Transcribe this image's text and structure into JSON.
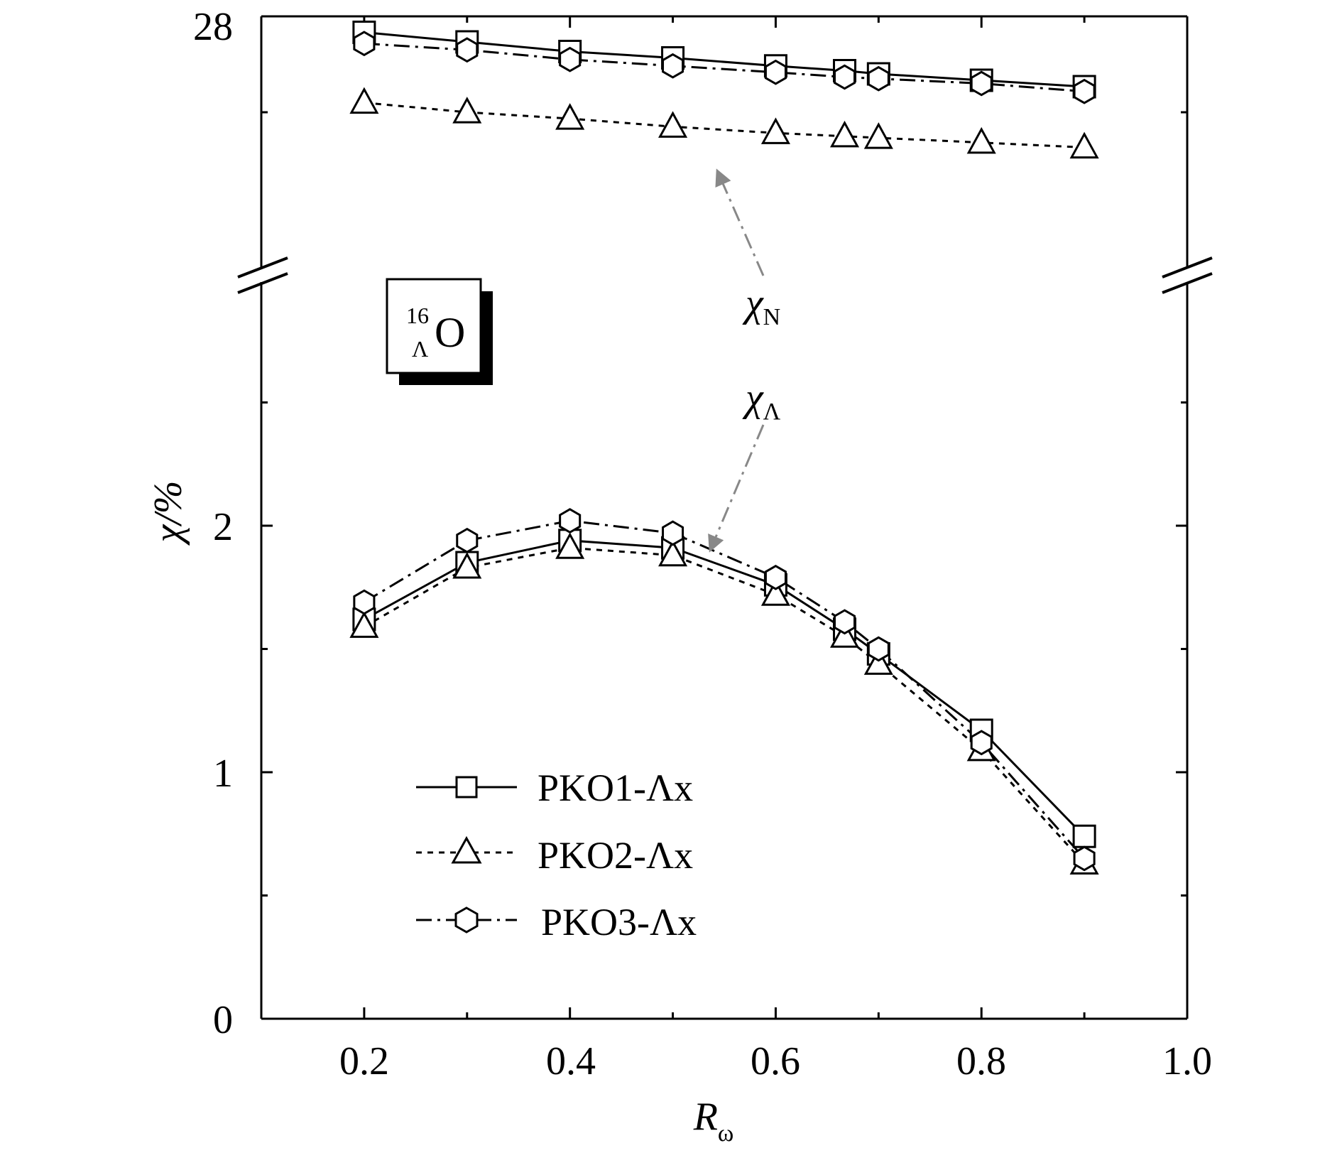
{
  "chart_data": {
    "type": "line",
    "title": "",
    "xlabel": "R",
    "xlabel_sub": "ω",
    "ylabel": "χ/%",
    "xlim": [
      0.1,
      1.0
    ],
    "x_ticks": [
      0.2,
      0.4,
      0.6,
      0.8,
      1.0
    ],
    "x_tick_labels": [
      "0.2",
      "0.4",
      "0.6",
      "0.8",
      "1.0"
    ],
    "y_tick_labels": [
      "0",
      "1",
      "2",
      "28"
    ],
    "y_axis_break": true,
    "lower_ylim": [
      0,
      2.5
    ],
    "upper_ylim": [
      25.9,
      28
    ],
    "nucleus_label": {
      "mass": "16",
      "sub": "Λ",
      "element": "O"
    },
    "annotations": [
      {
        "symbol": "χ",
        "sub": "N"
      },
      {
        "symbol": "χ",
        "sub": "Λ"
      }
    ],
    "legend_position": "lower-left",
    "x": [
      0.2,
      0.3,
      0.4,
      0.5,
      0.6,
      0.667,
      0.7,
      0.8,
      0.9
    ],
    "series": [
      {
        "name": "PKO1-Λx",
        "marker": "square",
        "line": "solid",
        "chi_N": [
          27.9,
          27.84,
          27.78,
          27.74,
          27.69,
          27.66,
          27.64,
          27.6,
          27.56
        ],
        "chi_Lambda": [
          1.62,
          1.85,
          1.94,
          1.91,
          1.76,
          1.58,
          1.48,
          1.17,
          0.74
        ]
      },
      {
        "name": "PKO2-Λx",
        "marker": "triangle",
        "line": "dashed",
        "chi_N": [
          27.46,
          27.4,
          27.36,
          27.31,
          27.27,
          27.25,
          27.24,
          27.21,
          27.18
        ],
        "chi_Lambda": [
          1.59,
          1.83,
          1.91,
          1.88,
          1.72,
          1.55,
          1.44,
          1.09,
          0.63
        ]
      },
      {
        "name": "PKO3-Λx",
        "marker": "hexagon",
        "line": "dashdot",
        "chi_N": [
          27.83,
          27.79,
          27.73,
          27.69,
          27.65,
          27.62,
          27.61,
          27.58,
          27.53
        ],
        "chi_Lambda": [
          1.69,
          1.94,
          2.02,
          1.97,
          1.79,
          1.61,
          1.5,
          1.12,
          0.65
        ]
      }
    ]
  }
}
